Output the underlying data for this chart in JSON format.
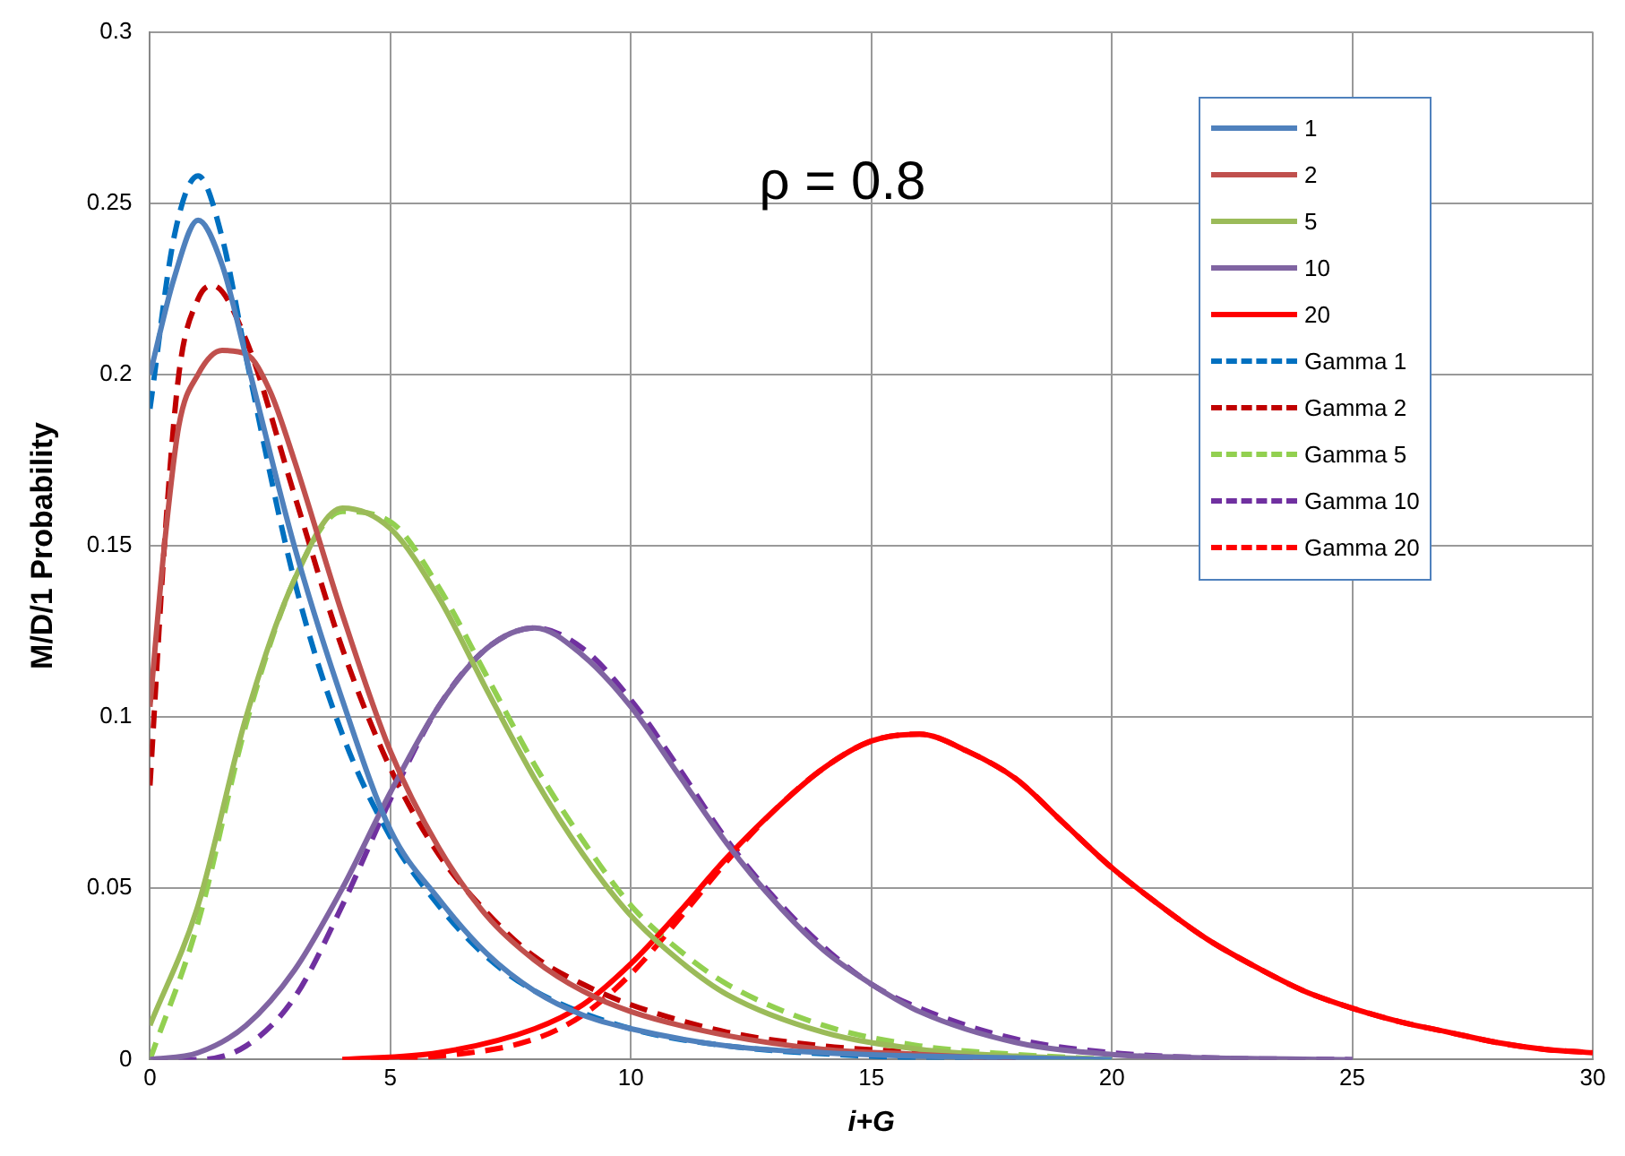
{
  "chart_data": {
    "type": "line",
    "ylabel": "M/D/1 Probability",
    "xlabel": "i+G",
    "annotations": [
      "ρ = 0.8"
    ],
    "xlim": [
      0,
      30
    ],
    "xticks": [
      0,
      5,
      10,
      15,
      20,
      25,
      30
    ],
    "ylim": [
      0,
      0.3
    ],
    "yticks": [
      0,
      0.05,
      0.1,
      0.15,
      0.2,
      0.25,
      0.3
    ],
    "grid": true,
    "legend": "top right",
    "marker": "none",
    "series": [
      {
        "name": "1",
        "color": "#4f81bd",
        "line_style": "solid",
        "x": [
          0,
          0.5,
          1,
          1.5,
          2,
          3,
          4,
          5,
          6,
          7,
          8,
          9,
          10,
          12,
          14,
          16,
          18,
          20
        ],
        "values": [
          0.2,
          0.228,
          0.245,
          0.232,
          0.205,
          0.15,
          0.105,
          0.067,
          0.047,
          0.031,
          0.02,
          0.013,
          0.009,
          0.004,
          0.002,
          0.001,
          0.0005,
          0
        ]
      },
      {
        "name": "2",
        "color": "#c0504d",
        "line_style": "solid",
        "x": [
          0,
          0.3,
          0.6,
          1,
          1.5,
          2,
          2.5,
          3,
          4,
          5,
          6,
          7,
          8,
          9,
          10,
          12,
          14,
          16,
          18
        ],
        "values": [
          0.103,
          0.15,
          0.185,
          0.2,
          0.207,
          0.206,
          0.195,
          0.175,
          0.13,
          0.09,
          0.062,
          0.042,
          0.029,
          0.02,
          0.014,
          0.007,
          0.003,
          0.0015,
          0
        ]
      },
      {
        "name": "5",
        "color": "#9bbb59",
        "line_style": "solid",
        "x": [
          0,
          1,
          2,
          3,
          4,
          5,
          6,
          7,
          8,
          9,
          10,
          11,
          12,
          14,
          16,
          18,
          20
        ],
        "values": [
          0.01,
          0.045,
          0.1,
          0.14,
          0.161,
          0.155,
          0.135,
          0.108,
          0.082,
          0.06,
          0.042,
          0.029,
          0.019,
          0.008,
          0.003,
          0.001,
          0
        ]
      },
      {
        "name": "10",
        "color": "#8064a2",
        "line_style": "solid",
        "x": [
          0,
          1,
          2,
          3,
          4,
          5,
          6,
          7,
          8,
          9,
          10,
          11,
          12,
          13,
          14,
          15,
          16,
          18,
          20,
          22,
          25
        ],
        "values": [
          0,
          0.002,
          0.01,
          0.026,
          0.05,
          0.078,
          0.103,
          0.12,
          0.126,
          0.118,
          0.103,
          0.083,
          0.063,
          0.046,
          0.032,
          0.022,
          0.014,
          0.005,
          0.0015,
          0.0005,
          0
        ]
      },
      {
        "name": "20",
        "color": "#ff0000",
        "line_style": "solid",
        "x": [
          4,
          6,
          8,
          9,
          10,
          11,
          12,
          13,
          14,
          15,
          16,
          17,
          18,
          19,
          20,
          21,
          22,
          23,
          24,
          25,
          26,
          27,
          28,
          29,
          30
        ],
        "values": [
          0,
          0.002,
          0.009,
          0.016,
          0.028,
          0.043,
          0.059,
          0.073,
          0.085,
          0.093,
          0.095,
          0.09,
          0.082,
          0.069,
          0.056,
          0.045,
          0.035,
          0.027,
          0.02,
          0.015,
          0.011,
          0.008,
          0.005,
          0.003,
          0.002
        ]
      },
      {
        "name": "Gamma 1",
        "color": "#0070c0",
        "line_style": "dashed",
        "x": [
          0,
          0.5,
          1,
          1.5,
          2,
          3,
          4,
          5,
          6,
          7,
          8,
          10,
          12,
          15,
          18
        ],
        "values": [
          0.19,
          0.24,
          0.258,
          0.24,
          0.205,
          0.14,
          0.095,
          0.065,
          0.045,
          0.03,
          0.02,
          0.009,
          0.004,
          0.001,
          0
        ]
      },
      {
        "name": "Gamma 2",
        "color": "#c00000",
        "line_style": "dashed",
        "x": [
          0,
          0.3,
          0.6,
          1,
          1.3,
          2,
          3,
          4,
          5,
          6,
          7,
          8,
          9,
          10,
          12,
          14,
          16,
          18
        ],
        "values": [
          0.08,
          0.15,
          0.2,
          0.222,
          0.226,
          0.21,
          0.165,
          0.12,
          0.085,
          0.06,
          0.043,
          0.03,
          0.022,
          0.016,
          0.008,
          0.004,
          0.002,
          0
        ]
      },
      {
        "name": "Gamma 5",
        "color": "#92d050",
        "line_style": "dashed",
        "x": [
          0,
          1,
          2,
          3,
          4,
          5,
          6,
          7,
          8,
          9,
          10,
          11,
          12,
          14,
          16,
          18,
          20
        ],
        "values": [
          0,
          0.04,
          0.098,
          0.14,
          0.16,
          0.157,
          0.138,
          0.112,
          0.086,
          0.064,
          0.045,
          0.032,
          0.022,
          0.01,
          0.004,
          0.0015,
          0
        ]
      },
      {
        "name": "Gamma 10",
        "color": "#7030a0",
        "line_style": "dashed",
        "x": [
          0,
          1,
          2,
          3,
          4,
          5,
          6,
          7,
          8,
          9,
          10,
          11,
          12,
          13,
          14,
          15,
          16,
          18,
          20,
          22,
          25
        ],
        "values": [
          0,
          0,
          0.004,
          0.018,
          0.045,
          0.076,
          0.103,
          0.12,
          0.126,
          0.12,
          0.105,
          0.085,
          0.064,
          0.047,
          0.033,
          0.022,
          0.015,
          0.006,
          0.002,
          0.0005,
          0
        ]
      },
      {
        "name": "Gamma 20",
        "color": "#ff0000",
        "line_style": "dashed",
        "x": [
          4,
          6,
          8,
          9,
          10,
          11,
          12,
          13,
          14,
          15,
          16,
          17,
          18,
          19,
          20,
          21,
          22,
          23,
          24,
          25,
          26,
          27,
          28,
          29,
          30
        ],
        "values": [
          0,
          0.001,
          0.006,
          0.013,
          0.025,
          0.041,
          0.058,
          0.073,
          0.085,
          0.093,
          0.095,
          0.09,
          0.082,
          0.069,
          0.056,
          0.045,
          0.035,
          0.027,
          0.02,
          0.015,
          0.011,
          0.008,
          0.005,
          0.003,
          0.002
        ]
      }
    ]
  }
}
